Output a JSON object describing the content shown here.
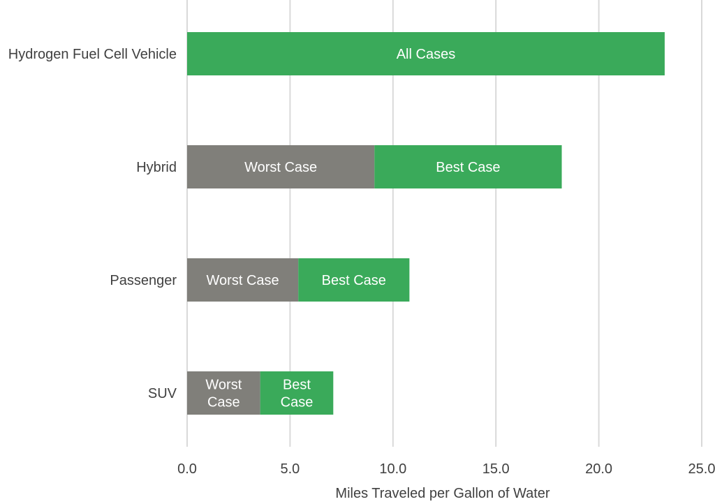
{
  "chart_data": {
    "type": "bar",
    "orientation": "horizontal",
    "stacked": true,
    "title": "",
    "xlabel": "Miles Traveled per Gallon of Water",
    "ylabel": "",
    "xlim": [
      0,
      25
    ],
    "xticks": [
      0,
      5,
      10,
      15,
      20,
      25
    ],
    "xtick_labels": [
      "0.0",
      "5.0",
      "10.0",
      "15.0",
      "20.0",
      "25.0"
    ],
    "grid": true,
    "categories": [
      "Hydrogen Fuel Cell Vehicle",
      "Hybrid",
      "Passenger",
      "SUV"
    ],
    "bars": [
      {
        "category": "Hydrogen Fuel Cell Vehicle",
        "segments": [
          {
            "name": "All Cases",
            "value": 23.2,
            "label": [
              "All Cases"
            ],
            "color": "#3aaa5a"
          }
        ]
      },
      {
        "category": "Hybrid",
        "segments": [
          {
            "name": "Worst Case",
            "value": 9.1,
            "label": [
              "Worst Case"
            ],
            "color": "#807f7a"
          },
          {
            "name": "Best Case",
            "value": 9.1,
            "label": [
              "Best Case"
            ],
            "color": "#3aaa5a"
          }
        ]
      },
      {
        "category": "Passenger",
        "segments": [
          {
            "name": "Worst Case",
            "value": 5.4,
            "label": [
              "Worst Case"
            ],
            "color": "#807f7a"
          },
          {
            "name": "Best Case",
            "value": 5.4,
            "label": [
              "Best Case"
            ],
            "color": "#3aaa5a"
          }
        ]
      },
      {
        "category": "SUV",
        "segments": [
          {
            "name": "Worst Case",
            "value": 3.55,
            "label": [
              "Worst",
              "Case"
            ],
            "color": "#807f7a"
          },
          {
            "name": "Best Case",
            "value": 3.55,
            "label": [
              "Best",
              "Case"
            ],
            "color": "#3aaa5a"
          }
        ]
      }
    ]
  }
}
